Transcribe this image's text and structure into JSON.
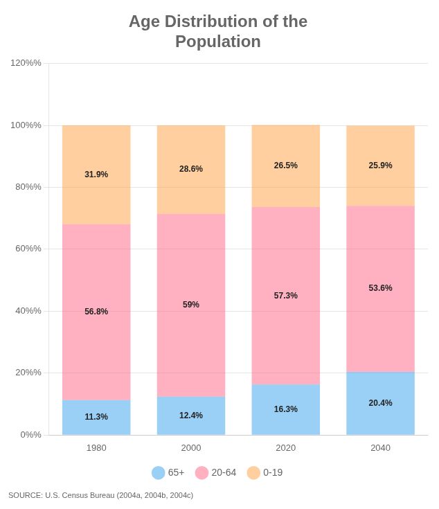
{
  "chart_data": {
    "type": "bar",
    "title": "Age Distribution of the\nPopulation",
    "categories": [
      "1980",
      "2000",
      "2020",
      "2040"
    ],
    "series": [
      {
        "name": "65+",
        "values": [
          11.3,
          12.4,
          16.3,
          20.4
        ],
        "value_labels": [
          "11.3%",
          "12.4%",
          "16.3%",
          "20.4%"
        ]
      },
      {
        "name": "20-64",
        "values": [
          56.8,
          59.0,
          57.3,
          53.6
        ],
        "value_labels": [
          "56.8%",
          "59%",
          "57.3%",
          "53.6%"
        ]
      },
      {
        "name": "0-19",
        "values": [
          31.9,
          28.6,
          26.5,
          25.9
        ],
        "value_labels": [
          "31.9%",
          "28.6%",
          "26.5%",
          "25.9%"
        ]
      }
    ],
    "stacked": true,
    "data_labels": true,
    "ylim": [
      0,
      120
    ],
    "yticks": [
      {
        "value": 0,
        "label": "0%%"
      },
      {
        "value": 20,
        "label": "20%%"
      },
      {
        "value": 40,
        "label": "40%%"
      },
      {
        "value": 60,
        "label": "60%%"
      },
      {
        "value": 80,
        "label": "80%%"
      },
      {
        "value": 100,
        "label": "100%%"
      },
      {
        "value": 120,
        "label": "120%%"
      }
    ],
    "grid": true,
    "legend": "bottom",
    "annotations": [
      "SOURCE: U.S. Census Bureau (2004a, 2004b, 2004c)"
    ]
  }
}
